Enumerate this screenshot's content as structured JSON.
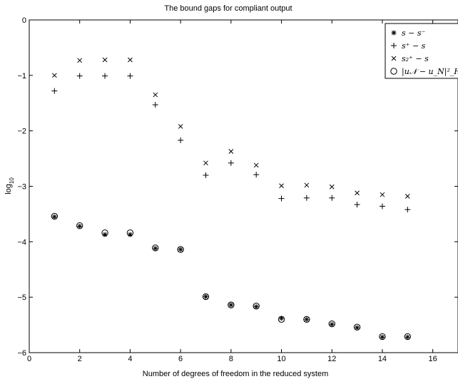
{
  "chart_data": {
    "type": "scatter",
    "title": "The bound gaps for compliant output",
    "xlabel": "Number of degrees of freedom in the reduced system",
    "ylabel": "log",
    "ylabel_subscript": "10",
    "xlim": [
      0,
      17
    ],
    "ylim": [
      -6,
      0
    ],
    "xticks": [
      0,
      2,
      4,
      6,
      8,
      10,
      12,
      14,
      16
    ],
    "yticks": [
      0,
      -1,
      -2,
      -3,
      -4,
      -5,
      -6
    ],
    "grid": false,
    "legend_position": "top-right",
    "series": [
      {
        "name": "s − s⁻",
        "marker": "asterisk",
        "x": [
          1,
          2,
          3,
          4,
          5,
          6,
          7,
          8,
          9,
          10,
          11,
          12,
          13,
          14,
          15
        ],
        "y": [
          -3.55,
          -3.72,
          -3.87,
          -3.87,
          -4.12,
          -4.14,
          -4.99,
          -5.14,
          -5.17,
          -5.38,
          -5.4,
          -5.49,
          -5.55,
          -5.72,
          -5.72
        ]
      },
      {
        "name": "s⁺ − s",
        "marker": "plus",
        "x": [
          1,
          2,
          3,
          4,
          5,
          6,
          7,
          8,
          9,
          10,
          11,
          12,
          13,
          14,
          15
        ],
        "y": [
          -1.28,
          -1.01,
          -1.01,
          -1.01,
          -1.53,
          -2.17,
          -2.8,
          -2.58,
          -2.79,
          -3.22,
          -3.21,
          -3.21,
          -3.33,
          -3.36,
          -3.42
        ]
      },
      {
        "name": "s₂⁺ − s",
        "marker": "cross",
        "x": [
          1,
          2,
          3,
          4,
          5,
          6,
          7,
          8,
          9,
          10,
          11,
          12,
          13,
          14,
          15
        ],
        "y": [
          -1.0,
          -0.73,
          -0.72,
          -0.72,
          -1.35,
          -1.92,
          -2.58,
          -2.37,
          -2.62,
          -2.99,
          -2.98,
          -3.01,
          -3.12,
          -3.15,
          -3.18
        ]
      },
      {
        "name": "|u𝒩 − u_N|²_H",
        "marker": "circle",
        "x": [
          1,
          2,
          3,
          4,
          5,
          6,
          7,
          8,
          9,
          10,
          11,
          12,
          13,
          14,
          15
        ],
        "y": [
          -3.54,
          -3.71,
          -3.84,
          -3.84,
          -4.11,
          -4.14,
          -4.99,
          -5.14,
          -5.16,
          -5.4,
          -5.4,
          -5.48,
          -5.54,
          -5.71,
          -5.71
        ]
      }
    ]
  }
}
